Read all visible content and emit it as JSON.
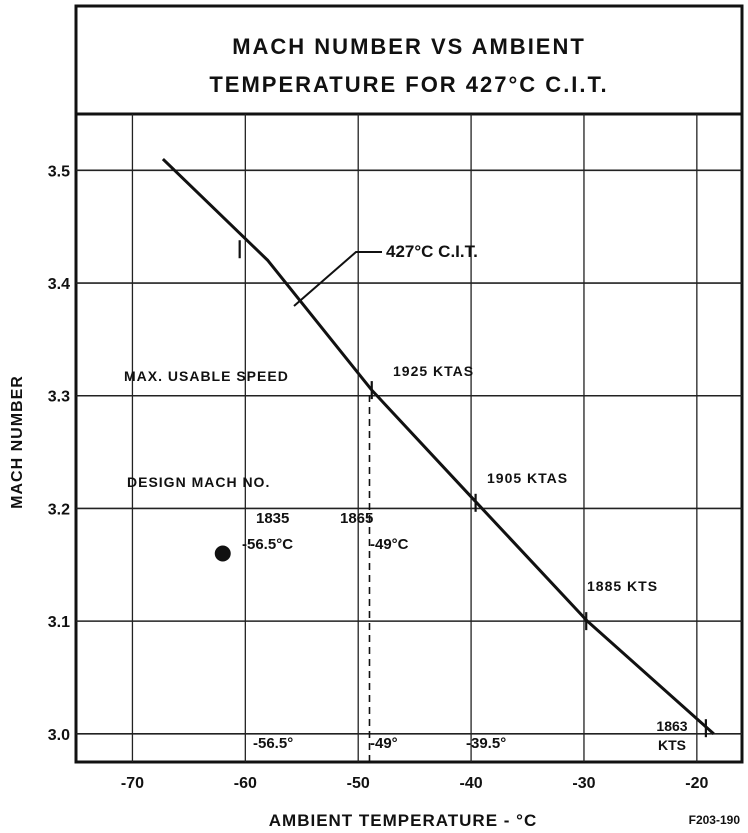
{
  "chart_data": {
    "type": "line",
    "title": "MACH NUMBER VS AMBIENT\nTEMPERATURE FOR 427°C C.I.T.",
    "title_lines": [
      "MACH NUMBER VS AMBIENT",
      "TEMPERATURE FOR 427°C C.I.T."
    ],
    "xlabel": "AMBIENT TEMPERATURE - °C",
    "ylabel": "MACH NUMBER",
    "xlim": [
      -75,
      -16
    ],
    "ylim": [
      2.975,
      3.55
    ],
    "x_ticks": [
      -70,
      -60,
      -50,
      -40,
      -30,
      -20
    ],
    "x_tick_labels": [
      "-70",
      "-60",
      "-50",
      "-40",
      "-30",
      "-20"
    ],
    "y_ticks": [
      3.0,
      3.1,
      3.2,
      3.3,
      3.4,
      3.5
    ],
    "y_tick_labels": [
      "3.0",
      "3.1",
      "3.2",
      "3.3",
      "3.4",
      "3.5"
    ],
    "grid": true,
    "series": [
      {
        "name": "427°C C.I.T.",
        "x": [
          -67.3,
          -58,
          -48.8,
          -39.5,
          -29.7,
          -18.5
        ],
        "y": [
          3.51,
          3.42,
          3.305,
          3.205,
          3.1,
          3.0
        ]
      }
    ],
    "series_label": "427°C C.I.T.",
    "tick_marks_on_series": [
      {
        "x": -60.5,
        "y": 3.43
      },
      {
        "x": -48.8,
        "y": 3.305
      },
      {
        "x": -39.6,
        "y": 3.205
      },
      {
        "x": -29.8,
        "y": 3.1
      },
      {
        "x": -19.2,
        "y": 3.005
      }
    ],
    "reference_lines": [
      {
        "x": -49,
        "y_from": 2.975,
        "y_to": 3.305,
        "style": "dashed"
      }
    ],
    "design_point": {
      "x": -62,
      "y": 3.16,
      "marker": "filled-circle"
    },
    "annotations": {
      "max_usable_speed": "MAX. USABLE SPEED",
      "speed_1925": "1925 KTAS",
      "design_mach": "DESIGN MACH NO.",
      "speed_1905": "1905 KTAS",
      "speed_1835": "1835",
      "speed_1865": "1865",
      "temp_design": "-56.5°C",
      "temp_max": "-49°C",
      "speed_1885": "1885 KTS",
      "speed_1863": "1863",
      "kts": "KTS",
      "bottom_t1": "-56.5°",
      "bottom_t2": "-49°",
      "bottom_t3": "-39.5°",
      "figure_id": "F203-190"
    }
  }
}
